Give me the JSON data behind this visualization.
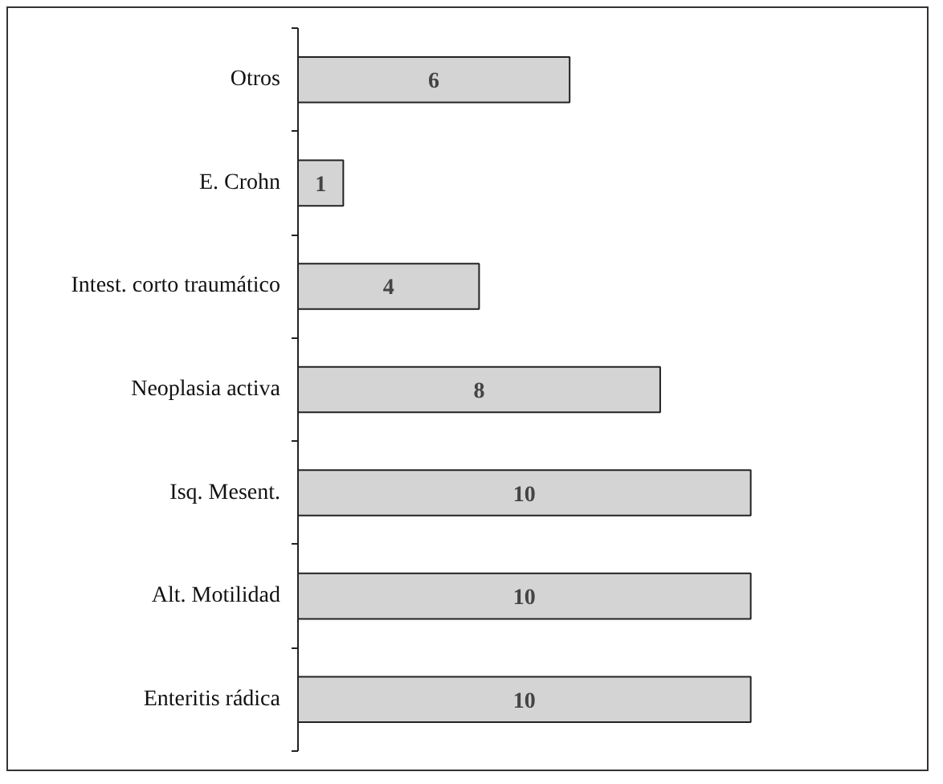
{
  "chart_data": {
    "type": "bar",
    "orientation": "horizontal",
    "categories": [
      "Otros",
      "E. Crohn",
      "Intest. corto traumático",
      "Neoplasia activa",
      "Isq. Mesent.",
      "Alt. Motilidad",
      "Enteritis rádica"
    ],
    "values": [
      6,
      1,
      4,
      8,
      10,
      10,
      10
    ],
    "color": "#d4d4d4",
    "data_labels": true,
    "tick_labels": "y"
  }
}
